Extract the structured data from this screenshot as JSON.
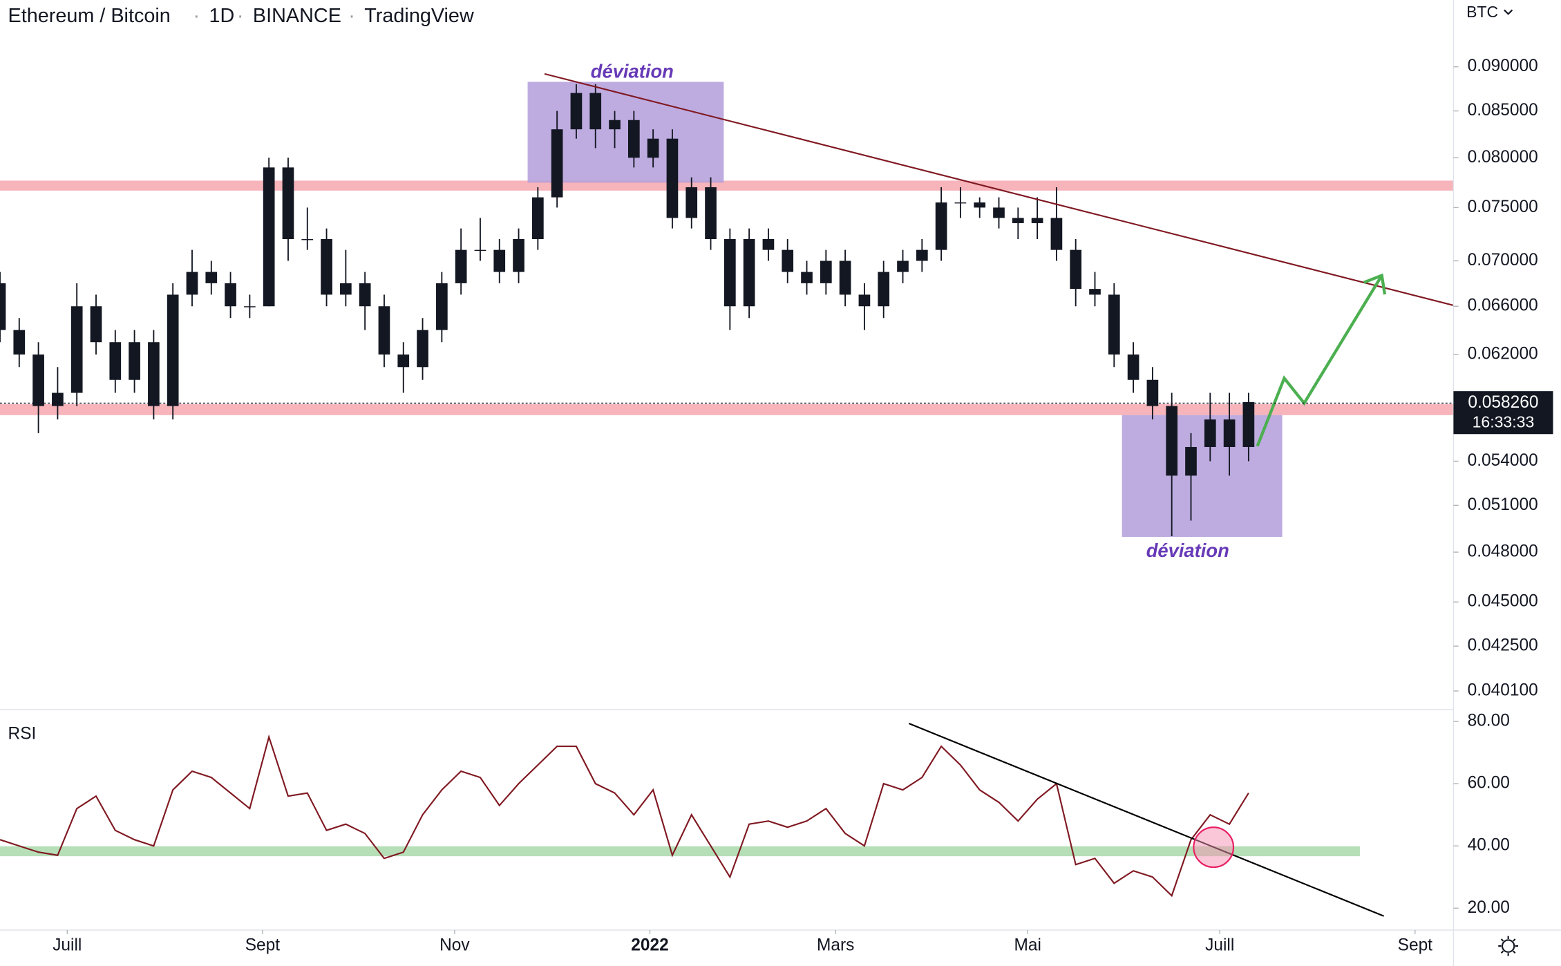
{
  "header": {
    "symbol": "Ethereum / Bitcoin",
    "interval": "1D",
    "exchange": "BINANCE",
    "source": "TradingView"
  },
  "chart_data": [
    {
      "type": "candlestick",
      "y_unit": "BTC",
      "log_scale": true,
      "annotations": [
        "déviation",
        "déviation"
      ],
      "last_price": {
        "value": 0.05826,
        "label": "0.058260"
      },
      "countdown": "16:33:33",
      "color": "#131722",
      "xlim": [
        0,
        454
      ],
      "xticks": [
        {
          "value": 21,
          "label": "Juill"
        },
        {
          "value": 82,
          "label": "Sept"
        },
        {
          "value": 142,
          "label": "Nov"
        },
        {
          "value": 203,
          "label": "2022"
        },
        {
          "value": 261,
          "label": "Mars"
        },
        {
          "value": 321,
          "label": "Mai"
        },
        {
          "value": 381,
          "label": "Juill"
        },
        {
          "value": 442,
          "label": "Sept"
        }
      ],
      "ylim": [
        0.0392,
        0.0944
      ],
      "yticks": [
        {
          "value": 0.09,
          "label": "0.090000"
        },
        {
          "value": 0.085,
          "label": "0.085000"
        },
        {
          "value": 0.08,
          "label": "0.080000"
        },
        {
          "value": 0.075,
          "label": "0.075000"
        },
        {
          "value": 0.07,
          "label": "0.070000"
        },
        {
          "value": 0.066,
          "label": "0.066000"
        },
        {
          "value": 0.062,
          "label": "0.062000"
        },
        {
          "value": 0.054,
          "label": "0.054000"
        },
        {
          "value": 0.051,
          "label": "0.051000"
        },
        {
          "value": 0.048,
          "label": "0.048000"
        },
        {
          "value": 0.045,
          "label": "0.045000"
        },
        {
          "value": 0.0425,
          "label": "0.042500"
        },
        {
          "value": 0.0401,
          "label": "0.040100"
        }
      ],
      "x": [
        0,
        6,
        12,
        18,
        24,
        30,
        36,
        42,
        48,
        54,
        60,
        66,
        72,
        78,
        84,
        90,
        96,
        102,
        108,
        114,
        120,
        126,
        132,
        138,
        144,
        150,
        156,
        162,
        168,
        174,
        180,
        186,
        192,
        198,
        204,
        210,
        216,
        222,
        228,
        234,
        240,
        246,
        252,
        258,
        264,
        270,
        276,
        282,
        288,
        294,
        300,
        306,
        312,
        318,
        324,
        330,
        336,
        342,
        348,
        354,
        360,
        366,
        372,
        378,
        384,
        390
      ],
      "ohlc": [
        [
          0.068,
          0.069,
          0.063,
          0.064
        ],
        [
          0.064,
          0.065,
          0.061,
          0.062
        ],
        [
          0.062,
          0.063,
          0.056,
          0.058
        ],
        [
          0.058,
          0.061,
          0.057,
          0.059
        ],
        [
          0.059,
          0.068,
          0.058,
          0.066
        ],
        [
          0.066,
          0.067,
          0.062,
          0.063
        ],
        [
          0.063,
          0.064,
          0.059,
          0.06
        ],
        [
          0.06,
          0.064,
          0.059,
          0.063
        ],
        [
          0.063,
          0.064,
          0.057,
          0.058
        ],
        [
          0.058,
          0.068,
          0.057,
          0.067
        ],
        [
          0.067,
          0.071,
          0.066,
          0.069
        ],
        [
          0.069,
          0.07,
          0.067,
          0.068
        ],
        [
          0.068,
          0.069,
          0.065,
          0.066
        ],
        [
          0.066,
          0.067,
          0.065,
          0.066
        ],
        [
          0.066,
          0.08,
          0.066,
          0.079
        ],
        [
          0.079,
          0.08,
          0.07,
          0.072
        ],
        [
          0.072,
          0.075,
          0.071,
          0.072
        ],
        [
          0.072,
          0.073,
          0.066,
          0.067
        ],
        [
          0.067,
          0.071,
          0.066,
          0.068
        ],
        [
          0.068,
          0.069,
          0.064,
          0.066
        ],
        [
          0.066,
          0.067,
          0.061,
          0.062
        ],
        [
          0.062,
          0.063,
          0.059,
          0.061
        ],
        [
          0.061,
          0.065,
          0.06,
          0.064
        ],
        [
          0.064,
          0.069,
          0.063,
          0.068
        ],
        [
          0.068,
          0.073,
          0.067,
          0.071
        ],
        [
          0.071,
          0.074,
          0.07,
          0.071
        ],
        [
          0.071,
          0.072,
          0.068,
          0.069
        ],
        [
          0.069,
          0.073,
          0.068,
          0.072
        ],
        [
          0.072,
          0.077,
          0.071,
          0.076
        ],
        [
          0.076,
          0.085,
          0.075,
          0.083
        ],
        [
          0.083,
          0.088,
          0.082,
          0.087
        ],
        [
          0.087,
          0.088,
          0.081,
          0.083
        ],
        [
          0.083,
          0.085,
          0.081,
          0.084
        ],
        [
          0.084,
          0.085,
          0.079,
          0.08
        ],
        [
          0.08,
          0.083,
          0.079,
          0.082
        ],
        [
          0.082,
          0.083,
          0.073,
          0.074
        ],
        [
          0.074,
          0.078,
          0.073,
          0.077
        ],
        [
          0.077,
          0.078,
          0.071,
          0.072
        ],
        [
          0.072,
          0.073,
          0.064,
          0.066
        ],
        [
          0.066,
          0.073,
          0.065,
          0.072
        ],
        [
          0.072,
          0.073,
          0.07,
          0.071
        ],
        [
          0.071,
          0.072,
          0.068,
          0.069
        ],
        [
          0.069,
          0.07,
          0.067,
          0.068
        ],
        [
          0.068,
          0.071,
          0.067,
          0.07
        ],
        [
          0.07,
          0.071,
          0.066,
          0.067
        ],
        [
          0.067,
          0.068,
          0.064,
          0.066
        ],
        [
          0.066,
          0.07,
          0.065,
          0.069
        ],
        [
          0.069,
          0.071,
          0.068,
          0.07
        ],
        [
          0.07,
          0.072,
          0.069,
          0.071
        ],
        [
          0.071,
          0.077,
          0.07,
          0.0755
        ],
        [
          0.0755,
          0.077,
          0.074,
          0.0755
        ],
        [
          0.0755,
          0.076,
          0.074,
          0.075
        ],
        [
          0.075,
          0.076,
          0.073,
          0.074
        ],
        [
          0.074,
          0.075,
          0.072,
          0.0735
        ],
        [
          0.0735,
          0.076,
          0.072,
          0.074
        ],
        [
          0.074,
          0.077,
          0.07,
          0.071
        ],
        [
          0.071,
          0.072,
          0.066,
          0.0675
        ],
        [
          0.0675,
          0.069,
          0.066,
          0.067
        ],
        [
          0.067,
          0.068,
          0.061,
          0.062
        ],
        [
          0.062,
          0.063,
          0.059,
          0.06
        ],
        [
          0.06,
          0.061,
          0.057,
          0.058
        ],
        [
          0.058,
          0.059,
          0.049,
          0.053
        ],
        [
          0.053,
          0.056,
          0.05,
          0.055
        ],
        [
          0.055,
          0.059,
          0.054,
          0.057
        ],
        [
          0.057,
          0.059,
          0.053,
          0.055
        ],
        [
          0.055,
          0.059,
          0.054,
          0.0583
        ]
      ]
    },
    {
      "type": "line",
      "title": "RSI",
      "color": "#801922",
      "ylim": [
        12,
        83.5
      ],
      "yticks": [
        {
          "value": 80,
          "label": "80.00"
        },
        {
          "value": 60,
          "label": "60.00"
        },
        {
          "value": 40,
          "label": "40.00"
        },
        {
          "value": 20,
          "label": "20.00"
        }
      ],
      "values": [
        42,
        40,
        38,
        37,
        52,
        56,
        45,
        42,
        40,
        58,
        64,
        62,
        57,
        52,
        75,
        56,
        57,
        45,
        47,
        44,
        36,
        38,
        50,
        58,
        64,
        62,
        53,
        60,
        66,
        72,
        72,
        60,
        57,
        50,
        58,
        37,
        50,
        40,
        30,
        47,
        48,
        46,
        48,
        52,
        44,
        40,
        60,
        58,
        62,
        72,
        66,
        58,
        54,
        48,
        55,
        60,
        34,
        36,
        28,
        32,
        30,
        24,
        42,
        50,
        47,
        57
      ]
    }
  ]
}
